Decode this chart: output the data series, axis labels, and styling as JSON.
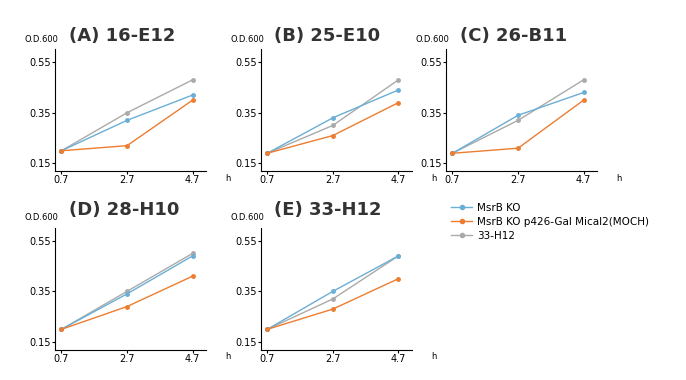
{
  "titles": [
    "(A) 16-E12",
    "(B) 25-E10",
    "(C) 26-B11",
    "(D) 28-H10",
    "(E) 33-H12"
  ],
  "x": [
    0.7,
    2.7,
    4.7
  ],
  "series": {
    "A": {
      "MsrB_KO": [
        0.2,
        0.32,
        0.42
      ],
      "MOCH": [
        0.2,
        0.22,
        0.4
      ],
      "chemical": [
        0.2,
        0.35,
        0.48
      ]
    },
    "B": {
      "MsrB_KO": [
        0.19,
        0.33,
        0.44
      ],
      "MOCH": [
        0.19,
        0.26,
        0.39
      ],
      "chemical": [
        0.19,
        0.3,
        0.48
      ]
    },
    "C": {
      "MsrB_KO": [
        0.19,
        0.34,
        0.43
      ],
      "MOCH": [
        0.19,
        0.21,
        0.4
      ],
      "chemical": [
        0.19,
        0.32,
        0.48
      ]
    },
    "D": {
      "MsrB_KO": [
        0.2,
        0.34,
        0.49
      ],
      "MOCH": [
        0.2,
        0.29,
        0.41
      ],
      "chemical": [
        0.2,
        0.35,
        0.5
      ]
    },
    "E": {
      "MsrB_KO": [
        0.2,
        0.35,
        0.49
      ],
      "MOCH": [
        0.2,
        0.28,
        0.4
      ],
      "chemical": [
        0.2,
        0.32,
        0.49
      ]
    }
  },
  "colors": {
    "MsrB_KO": "#6BAED6",
    "MOCH": "#ED7D31",
    "chemical": "#AAAAAA"
  },
  "ylim": [
    0.12,
    0.6
  ],
  "yticks": [
    0.15,
    0.35,
    0.55
  ],
  "xticks": [
    0.7,
    2.7,
    4.7
  ],
  "xlabel": "h",
  "ylabel": "O.D.600",
  "legend_labels": [
    "MsrB KO",
    "MsrB KO p426-Gal Mical2(MOCH)",
    "33-H12"
  ],
  "title_fontsize": 13,
  "axis_label_fontsize": 6,
  "tick_fontsize": 7,
  "legend_fontsize": 7.5,
  "bg_color": "#FFFFFF"
}
